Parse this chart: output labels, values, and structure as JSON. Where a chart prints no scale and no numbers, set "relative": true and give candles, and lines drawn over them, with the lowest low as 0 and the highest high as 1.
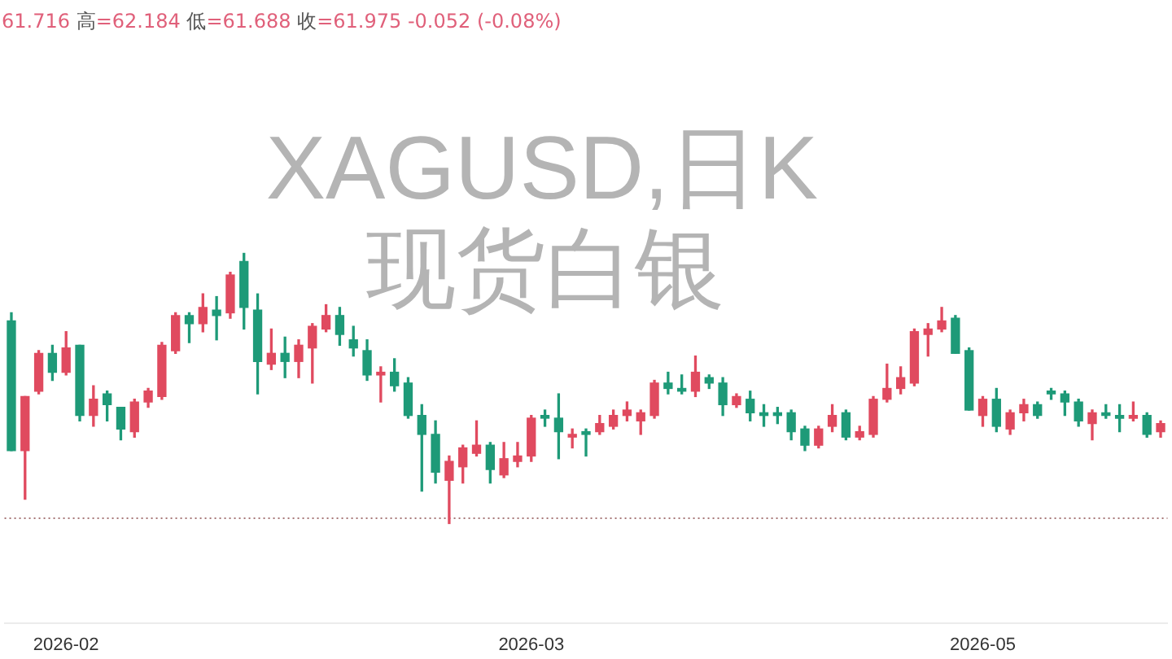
{
  "chart_data": {
    "type": "candlestick",
    "title": "XAGUSD,日K",
    "subtitle": "现货白银",
    "annotations": [
      "61.716 高=62.184 低=61.688 收=61.975 -0.052 (-0.08%)"
    ],
    "relative": true,
    "tick_labels": "x",
    "categories": [
      null,
      null,
      null,
      null,
      "2026-02",
      null,
      null,
      null,
      null,
      null,
      null,
      null,
      null,
      null,
      null,
      null,
      null,
      null,
      null,
      null,
      null,
      null,
      null,
      null,
      null,
      null,
      null,
      null,
      null,
      null,
      null,
      null,
      null,
      null,
      null,
      null,
      null,
      null,
      "2026-03",
      null,
      null,
      null,
      null,
      null,
      null,
      null,
      null,
      null,
      null,
      null,
      null,
      null,
      null,
      null,
      null,
      null,
      null,
      null,
      null,
      null,
      null,
      null,
      null,
      null,
      null,
      null,
      null,
      null,
      null,
      null,
      null,
      "2026-05",
      null,
      null,
      null,
      null,
      null,
      null,
      null,
      null,
      null,
      null,
      null,
      null,
      null
    ],
    "ohlc": [
      [
        0.75,
        0.78,
        0.27,
        0.27
      ],
      [
        0.27,
        0.47,
        0.09,
        0.47
      ],
      [
        0.49,
        0.64,
        0.48,
        0.63
      ],
      [
        0.63,
        0.66,
        0.53,
        0.56
      ],
      [
        0.56,
        0.71,
        0.55,
        0.65
      ],
      [
        0.66,
        0.66,
        0.38,
        0.4
      ],
      [
        0.4,
        0.51,
        0.36,
        0.46
      ],
      [
        0.48,
        0.49,
        0.38,
        0.44
      ],
      [
        0.43,
        0.43,
        0.31,
        0.35
      ],
      [
        0.34,
        0.46,
        0.32,
        0.45
      ],
      [
        0.45,
        0.5,
        0.43,
        0.49
      ],
      [
        0.47,
        0.67,
        0.46,
        0.66
      ],
      [
        0.64,
        0.78,
        0.63,
        0.77
      ],
      [
        0.77,
        0.78,
        0.67,
        0.74
      ],
      [
        0.74,
        0.85,
        0.71,
        0.8
      ],
      [
        0.79,
        0.84,
        0.68,
        0.77
      ],
      [
        0.78,
        0.93,
        0.76,
        0.92
      ],
      [
        0.97,
        1,
        0.72,
        0.8
      ],
      [
        0.79,
        0.85,
        0.48,
        0.6
      ],
      [
        0.59,
        0.72,
        0.57,
        0.63
      ],
      [
        0.63,
        0.69,
        0.54,
        0.6
      ],
      [
        0.6,
        0.68,
        0.54,
        0.66
      ],
      [
        0.65,
        0.74,
        0.52,
        0.73
      ],
      [
        0.72,
        0.81,
        0.71,
        0.77
      ],
      [
        0.77,
        0.8,
        0.66,
        0.7
      ],
      [
        0.68,
        0.73,
        0.62,
        0.65
      ],
      [
        0.64,
        0.68,
        0.53,
        0.55
      ],
      [
        0.55,
        0.58,
        0.45,
        0.56
      ],
      [
        0.56,
        0.61,
        0.49,
        0.51
      ],
      [
        0.52,
        0.54,
        0.39,
        0.4
      ],
      [
        0.4,
        0.44,
        0.12,
        0.33
      ],
      [
        0.33,
        0.38,
        0.15,
        0.19
      ],
      [
        0.16,
        0.25,
        0,
        0.23
      ],
      [
        0.21,
        0.29,
        0.15,
        0.28
      ],
      [
        0.26,
        0.38,
        0.25,
        0.29
      ],
      [
        0.29,
        0.3,
        0.15,
        0.2
      ],
      [
        0.18,
        0.3,
        0.17,
        0.24
      ],
      [
        0.23,
        0.3,
        0.21,
        0.25
      ],
      [
        0.25,
        0.4,
        0.23,
        0.39
      ],
      [
        0.4,
        0.42,
        0.36,
        0.39
      ],
      [
        0.39,
        0.48,
        0.24,
        0.34
      ],
      [
        0.32,
        0.35,
        0.28,
        0.33
      ],
      [
        0.34,
        0.35,
        0.25,
        0.33
      ],
      [
        0.34,
        0.4,
        0.33,
        0.37
      ],
      [
        0.36,
        0.42,
        0.35,
        0.4
      ],
      [
        0.4,
        0.45,
        0.38,
        0.42
      ],
      [
        0.38,
        0.42,
        0.33,
        0.41
      ],
      [
        0.4,
        0.53,
        0.39,
        0.52
      ],
      [
        0.52,
        0.56,
        0.48,
        0.5
      ],
      [
        0.5,
        0.55,
        0.48,
        0.49
      ],
      [
        0.49,
        0.62,
        0.47,
        0.56
      ],
      [
        0.54,
        0.55,
        0.5,
        0.52
      ],
      [
        0.52,
        0.54,
        0.4,
        0.44
      ],
      [
        0.44,
        0.48,
        0.43,
        0.47
      ],
      [
        0.46,
        0.49,
        0.38,
        0.41
      ],
      [
        0.41,
        0.44,
        0.36,
        0.4
      ],
      [
        0.41,
        0.43,
        0.37,
        0.4
      ],
      [
        0.41,
        0.42,
        0.31,
        0.34
      ],
      [
        0.35,
        0.36,
        0.27,
        0.29
      ],
      [
        0.29,
        0.36,
        0.28,
        0.35
      ],
      [
        0.36,
        0.44,
        0.34,
        0.4
      ],
      [
        0.41,
        0.42,
        0.31,
        0.32
      ],
      [
        0.32,
        0.36,
        0.31,
        0.34
      ],
      [
        0.33,
        0.47,
        0.32,
        0.46
      ],
      [
        0.46,
        0.59,
        0.45,
        0.5
      ],
      [
        0.5,
        0.58,
        0.48,
        0.54
      ],
      [
        0.52,
        0.72,
        0.51,
        0.71
      ],
      [
        0.7,
        0.74,
        0.62,
        0.72
      ],
      [
        0.72,
        0.8,
        0.71,
        0.75
      ],
      [
        0.76,
        0.77,
        0.63,
        0.63
      ],
      [
        0.64,
        0.65,
        0.42,
        0.42
      ],
      [
        0.4,
        0.47,
        0.36,
        0.46
      ],
      [
        0.46,
        0.5,
        0.34,
        0.36
      ],
      [
        0.35,
        0.42,
        0.33,
        0.41
      ],
      [
        0.41,
        0.46,
        0.38,
        0.44
      ],
      [
        0.44,
        0.45,
        0.39,
        0.4
      ],
      [
        0.49,
        0.5,
        0.46,
        0.48
      ],
      [
        0.48,
        0.49,
        0.4,
        0.45
      ],
      [
        0.45,
        0.46,
        0.36,
        0.38
      ],
      [
        0.37,
        0.42,
        0.31,
        0.41
      ],
      [
        0.41,
        0.44,
        0.39,
        0.4
      ],
      [
        0.4,
        0.44,
        0.34,
        0.39
      ],
      [
        0.39,
        0.45,
        0.38,
        0.4
      ],
      [
        0.4,
        0.41,
        0.32,
        0.33
      ],
      [
        0.34,
        0.38,
        0.32,
        0.37
      ]
    ],
    "colors": [
      "#1e9a78",
      "#e04a5f",
      "#e04a5f",
      "#1e9a78",
      "#e04a5f",
      "#1e9a78",
      "#e04a5f",
      "#1e9a78",
      "#1e9a78",
      "#e04a5f",
      "#e04a5f",
      "#e04a5f",
      "#e04a5f",
      "#1e9a78",
      "#e04a5f",
      "#1e9a78",
      "#e04a5f",
      "#1e9a78",
      "#1e9a78",
      "#e04a5f",
      "#1e9a78",
      "#e04a5f",
      "#e04a5f",
      "#e04a5f",
      "#1e9a78",
      "#1e9a78",
      "#1e9a78",
      "#e04a5f",
      "#1e9a78",
      "#1e9a78",
      "#1e9a78",
      "#1e9a78",
      "#e04a5f",
      "#e04a5f",
      "#e04a5f",
      "#1e9a78",
      "#e04a5f",
      "#e04a5f",
      "#e04a5f",
      "#1e9a78",
      "#1e9a78",
      "#e04a5f",
      "#1e9a78",
      "#e04a5f",
      "#e04a5f",
      "#e04a5f",
      "#e04a5f",
      "#e04a5f",
      "#1e9a78",
      "#1e9a78",
      "#e04a5f",
      "#1e9a78",
      "#1e9a78",
      "#e04a5f",
      "#1e9a78",
      "#1e9a78",
      "#1e9a78",
      "#1e9a78",
      "#1e9a78",
      "#e04a5f",
      "#e04a5f",
      "#1e9a78",
      "#e04a5f",
      "#e04a5f",
      "#e04a5f",
      "#e04a5f",
      "#e04a5f",
      "#e04a5f",
      "#e04a5f",
      "#1e9a78",
      "#1e9a78",
      "#e04a5f",
      "#1e9a78",
      "#e04a5f",
      "#e04a5f",
      "#1e9a78",
      "#1e9a78",
      "#1e9a78",
      "#1e9a78",
      "#e04a5f",
      "#1e9a78",
      "#1e9a78",
      "#e04a5f",
      "#1e9a78",
      "#e04a5f"
    ],
    "ref_lines": [
      {
        "axis": "y",
        "value": 0.02,
        "color": "#a87878",
        "line_style": "dotted"
      }
    ]
  }
}
